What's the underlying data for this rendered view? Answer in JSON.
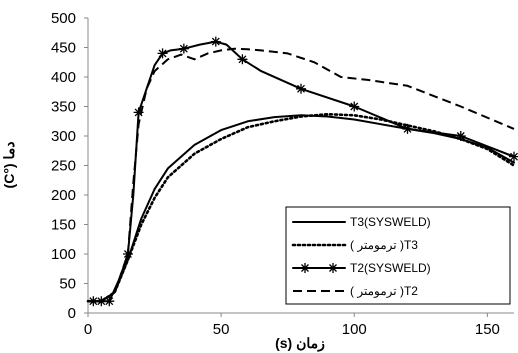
{
  "chart_data": {
    "type": "line",
    "xlabel": "زمان (s)",
    "ylabel": "دما (°C)",
    "xlim": [
      0,
      160
    ],
    "ylim": [
      0,
      500
    ],
    "xticks": [
      "0",
      "50",
      "100",
      "150"
    ],
    "yticks": [
      "0",
      "50",
      "100",
      "150",
      "200",
      "250",
      "300",
      "350",
      "400",
      "450",
      "500"
    ],
    "grid": false,
    "legend_position": "bottom-right",
    "series": [
      {
        "name": "T3(SYSWELD)",
        "color": "#000000",
        "style": "solid",
        "x": [
          0,
          5,
          10,
          15,
          20,
          25,
          30,
          40,
          50,
          60,
          70,
          80,
          90,
          100,
          110,
          120,
          130,
          140,
          150,
          160
        ],
        "y": [
          20,
          20,
          35,
          90,
          160,
          210,
          245,
          285,
          310,
          325,
          332,
          335,
          333,
          328,
          320,
          312,
          305,
          295,
          280,
          255
        ]
      },
      {
        "name": "( ترمومتر )T3",
        "color": "#000000",
        "style": "dotted",
        "x": [
          0,
          5,
          10,
          15,
          20,
          25,
          30,
          40,
          50,
          60,
          70,
          80,
          90,
          100,
          110,
          120,
          130,
          140,
          150,
          160
        ],
        "y": [
          20,
          20,
          35,
          90,
          150,
          195,
          230,
          270,
          295,
          315,
          325,
          333,
          337,
          335,
          328,
          318,
          308,
          295,
          278,
          250
        ]
      },
      {
        "name": "T2(SYSWELD)",
        "color": "#000000",
        "style": "solid-star",
        "x": [
          0,
          2,
          5,
          8,
          12,
          15,
          17,
          19,
          22,
          25,
          28,
          31,
          36,
          42,
          48,
          52,
          58,
          65,
          80,
          100,
          120,
          140,
          160
        ],
        "y": [
          20,
          20,
          20,
          20,
          60,
          100,
          200,
          340,
          380,
          420,
          440,
          445,
          448,
          455,
          460,
          455,
          430,
          410,
          380,
          350,
          312,
          300,
          265
        ]
      },
      {
        "name": "( ترمومتر )T2",
        "color": "#000000",
        "style": "dashed",
        "x": [
          0,
          5,
          10,
          15,
          17,
          19,
          22,
          25,
          30,
          35,
          40,
          45,
          50,
          55,
          60,
          65,
          75,
          85,
          95,
          105,
          120,
          140,
          160
        ],
        "y": [
          20,
          20,
          35,
          100,
          220,
          320,
          380,
          410,
          430,
          438,
          430,
          440,
          445,
          448,
          447,
          445,
          440,
          425,
          400,
          395,
          385,
          350,
          312
        ]
      }
    ]
  }
}
